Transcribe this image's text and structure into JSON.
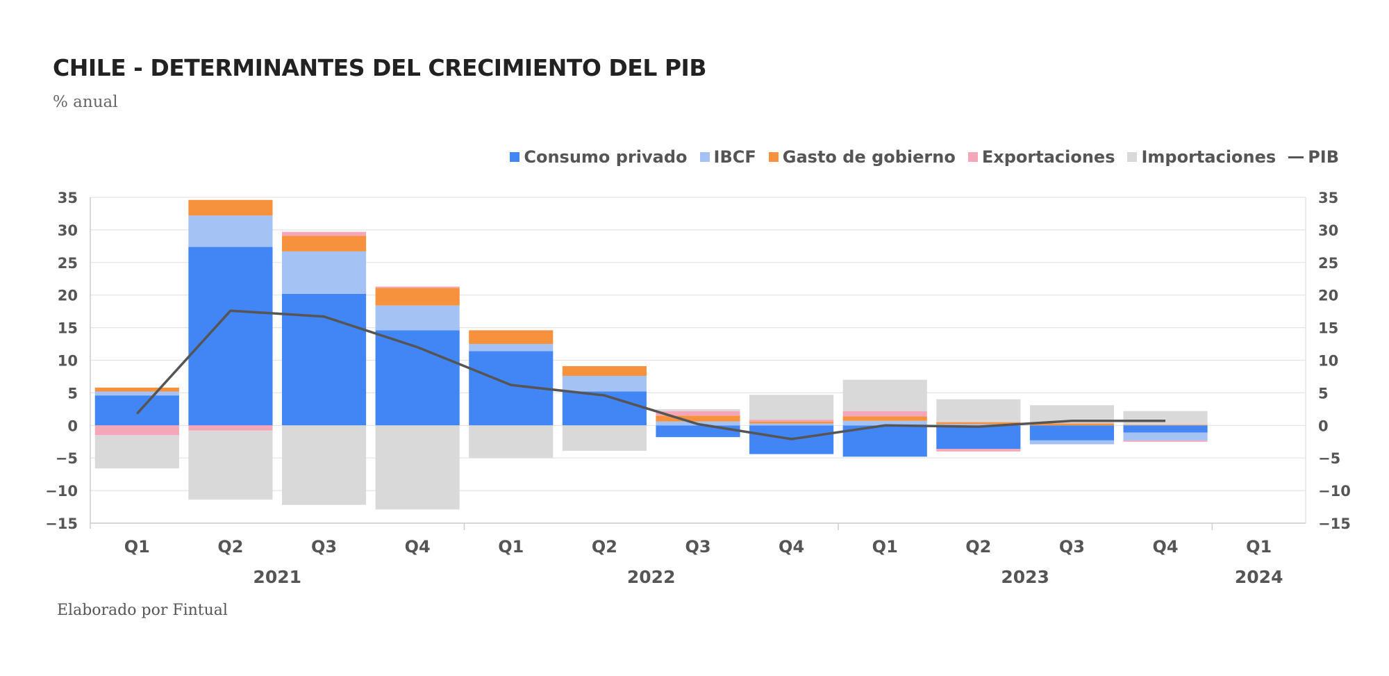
{
  "header": {
    "title": "CHILE - DETERMINANTES DEL CRECIMIENTO DEL PIB",
    "subtitle": "% anual"
  },
  "footer": {
    "source": "Elaborado por Fintual"
  },
  "colors": {
    "consumo": "#4285f4",
    "ibcf": "#a4c2f4",
    "gasto": "#f6923d",
    "export": "#f4a7b9",
    "import": "#d9d9d9",
    "pib": "#555555"
  },
  "chart_data": {
    "type": "bar",
    "stacked": true,
    "title": "CHILE - DETERMINANTES DEL CRECIMIENTO DEL PIB",
    "subtitle": "% anual",
    "ylim": [
      -15,
      35
    ],
    "yticks": [
      "35",
      "30",
      "25",
      "20",
      "15",
      "10",
      "5",
      "0",
      "−5",
      "−10",
      "−15"
    ],
    "ytick_values": [
      35,
      30,
      25,
      20,
      15,
      10,
      5,
      0,
      -5,
      -10,
      -15
    ],
    "categories": [
      "Q1",
      "Q2",
      "Q3",
      "Q4",
      "Q1",
      "Q2",
      "Q3",
      "Q4",
      "Q1",
      "Q2",
      "Q3",
      "Q4",
      "Q1"
    ],
    "years": [
      {
        "label": "2021",
        "start": 0,
        "end": 3
      },
      {
        "label": "2022",
        "start": 4,
        "end": 7
      },
      {
        "label": "2023",
        "start": 8,
        "end": 11
      },
      {
        "label": "2024",
        "start": 12,
        "end": 12
      }
    ],
    "legend_position": "top-right",
    "grid": true,
    "series": [
      {
        "name": "Consumo privado",
        "key": "consumo",
        "type": "bar",
        "values": [
          4.6,
          27.4,
          20.2,
          14.6,
          11.4,
          5.2,
          -1.8,
          -4.4,
          -4.8,
          -3.6,
          -2.3,
          -1.1,
          null
        ]
      },
      {
        "name": "IBCF",
        "key": "ibcf",
        "type": "bar",
        "values": [
          0.6,
          4.8,
          6.5,
          3.8,
          1.1,
          2.4,
          0.6,
          0.3,
          0.7,
          0.2,
          -0.6,
          -1.2,
          null
        ]
      },
      {
        "name": "Gasto de gobierno",
        "key": "gasto",
        "type": "bar",
        "values": [
          0.6,
          2.4,
          2.4,
          2.7,
          2.1,
          1.5,
          0.9,
          0.3,
          0.7,
          0.3,
          0.3,
          0.1,
          null
        ]
      },
      {
        "name": "Exportaciones",
        "key": "export",
        "type": "bar",
        "values": [
          -1.5,
          -0.8,
          0.6,
          0.2,
          0.0,
          0.0,
          0.7,
          0.3,
          0.8,
          -0.4,
          0.0,
          -0.2,
          null
        ]
      },
      {
        "name": "Importaciones",
        "key": "import",
        "type": "bar",
        "values": [
          -5.1,
          -10.6,
          -12.2,
          -12.9,
          -5.0,
          -3.9,
          0.3,
          3.8,
          4.8,
          3.5,
          2.8,
          2.1,
          null
        ]
      },
      {
        "name": "PIB",
        "key": "pib",
        "type": "line",
        "values": [
          1.8,
          17.6,
          16.7,
          12.0,
          6.2,
          4.6,
          0.2,
          -2.1,
          0.0,
          -0.2,
          0.7,
          0.7,
          null
        ]
      }
    ]
  }
}
